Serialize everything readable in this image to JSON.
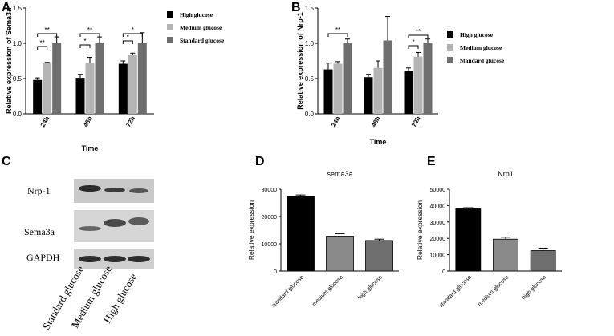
{
  "panels": {
    "A": "A",
    "B": "B",
    "C": "C",
    "D": "D",
    "E": "E"
  },
  "chart_data": [
    {
      "panel": "A",
      "type": "bar",
      "categories": [
        "24h",
        "48h",
        "72h"
      ],
      "series": [
        {
          "name": "High glucose",
          "color": "#000000",
          "values": [
            0.48,
            0.51,
            0.71
          ],
          "errors": [
            0.03,
            0.05,
            0.04
          ]
        },
        {
          "name": "Medium glucose",
          "color": "#b4b4b4",
          "values": [
            0.72,
            0.72,
            0.83
          ],
          "errors": [
            0.01,
            0.08,
            0.03
          ]
        },
        {
          "name": "Standard glucose",
          "color": "#6e6e6e",
          "values": [
            1.01,
            1.01,
            1.01
          ],
          "errors": [
            0.08,
            0.08,
            0.14
          ]
        }
      ],
      "xlabel": "Time",
      "ylabel": "Relative expression of Sema3a",
      "ylim": [
        0,
        1.5
      ],
      "yticks": [
        "0.0",
        "0.5",
        "1.0",
        "1.5"
      ],
      "significance": [
        {
          "group": 0,
          "from": 0,
          "to": 1,
          "label": "**"
        },
        {
          "group": 0,
          "from": 0,
          "to": 2,
          "label": "**"
        },
        {
          "group": 1,
          "from": 0,
          "to": 1,
          "label": "*"
        },
        {
          "group": 1,
          "from": 0,
          "to": 2,
          "label": "**"
        },
        {
          "group": 2,
          "from": 0,
          "to": 1,
          "label": "*"
        },
        {
          "group": 2,
          "from": 0,
          "to": 2,
          "label": "*"
        }
      ]
    },
    {
      "panel": "B",
      "type": "bar",
      "categories": [
        "24h",
        "48h",
        "72h"
      ],
      "series": [
        {
          "name": "High glucose",
          "color": "#000000",
          "values": [
            0.63,
            0.52,
            0.61
          ],
          "errors": [
            0.09,
            0.04,
            0.04
          ]
        },
        {
          "name": "Medium glucose",
          "color": "#b4b4b4",
          "values": [
            0.71,
            0.65,
            0.81
          ],
          "errors": [
            0.03,
            0.1,
            0.06
          ]
        },
        {
          "name": "Standard glucose",
          "color": "#6e6e6e",
          "values": [
            1.01,
            1.04,
            1.01
          ],
          "errors": [
            0.05,
            0.34,
            0.05
          ]
        }
      ],
      "xlabel": "Time",
      "ylabel": "Relative expression of Nrp-1",
      "ylim": [
        0,
        1.5
      ],
      "yticks": [
        "0.0",
        "0.5",
        "1.0",
        "1.5"
      ],
      "significance": [
        {
          "group": 0,
          "from": 0,
          "to": 2,
          "label": "**"
        },
        {
          "group": 2,
          "from": 0,
          "to": 1,
          "label": "*"
        },
        {
          "group": 2,
          "from": 0,
          "to": 2,
          "label": "**"
        }
      ]
    },
    {
      "panel": "D",
      "type": "bar",
      "title": "sema3a",
      "categories": [
        "standard glucose",
        "medium glucose",
        "high glucose"
      ],
      "values": [
        27500,
        12800,
        11200
      ],
      "errors": [
        400,
        900,
        500
      ],
      "colors": [
        "#000000",
        "#8a8a8a",
        "#6e6e6e"
      ],
      "ylabel": "Relative expression",
      "ylim": [
        0,
        30000
      ],
      "yticks": [
        "0",
        "10000",
        "20000",
        "30000"
      ]
    },
    {
      "panel": "E",
      "type": "bar",
      "title": "Nrp1",
      "categories": [
        "standard glucose",
        "medium glucose",
        "high glucose"
      ],
      "values": [
        38000,
        19500,
        12500
      ],
      "errors": [
        700,
        1200,
        1500
      ],
      "colors": [
        "#000000",
        "#8a8a8a",
        "#6e6e6e"
      ],
      "ylabel": "Relative expression",
      "ylim": [
        0,
        50000
      ],
      "yticks": [
        "0",
        "10000",
        "20000",
        "30000",
        "40000",
        "50000"
      ]
    }
  ],
  "western_blot": {
    "rows": [
      "Nrp-1",
      "Sema3a",
      "GAPDH"
    ],
    "columns": [
      "Standard glucose",
      "Medium glucose",
      "High glucose"
    ]
  }
}
